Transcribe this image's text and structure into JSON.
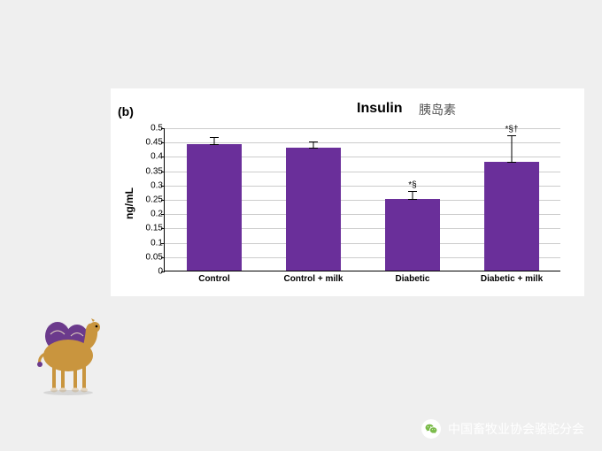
{
  "chart": {
    "panel_label": "(b)",
    "title": "Insulin",
    "subtitle_cn": "胰岛素",
    "ylabel": "ng/mL",
    "type": "bar",
    "ylim": [
      0,
      0.5
    ],
    "ytick_step": 0.05,
    "yticks": [
      "0",
      "0.05",
      "0.1",
      "0.15",
      "0.2",
      "0.25",
      "0.3",
      "0.35",
      "0.4",
      "0.45",
      "0.5"
    ],
    "categories": [
      "Control",
      "Control + milk",
      "Diabetic",
      "Diabetic + milk"
    ],
    "values": [
      0.44,
      0.43,
      0.25,
      0.38
    ],
    "errors": [
      0.03,
      0.025,
      0.03,
      0.095
    ],
    "sig_labels": [
      "",
      "",
      "*§",
      "*§†"
    ],
    "bar_color": "#6a2f9a",
    "bar_width": 0.55,
    "background_color": "#ffffff",
    "grid_color": "#cccccc",
    "axis_color": "#000000",
    "label_fontsize": 10,
    "title_fontsize": 16,
    "panel_label_fontsize": 14
  },
  "decoration": {
    "camel_body_color": "#c9953e",
    "camel_dark_color": "#6b3a8c",
    "camel_light_color": "#e5d6c0"
  },
  "footer": {
    "text": "中国畜牧业协会骆驼分会",
    "icon_name": "wechat-icon",
    "icon_color": "#7bbb4a",
    "text_color": "#ffffff"
  }
}
